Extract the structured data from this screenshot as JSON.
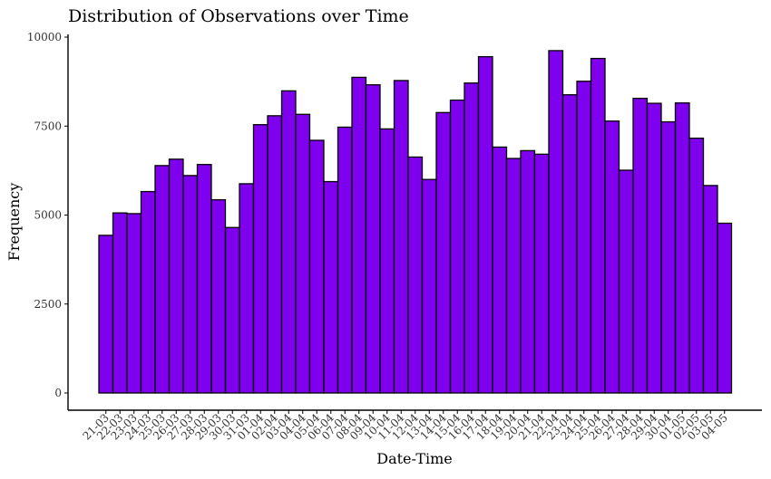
{
  "chart_data": {
    "type": "bar",
    "title": "Distribution of Observations over Time",
    "xlabel": "Date-Time",
    "ylabel": "Frequency",
    "ylim": [
      0,
      10000
    ],
    "yticks": [
      0,
      2500,
      5000,
      7500,
      10000
    ],
    "grid": false,
    "legend": "none",
    "bar_fill": "#7f00ee",
    "bar_stroke": "#000000",
    "categories": [
      "21-03",
      "22-03",
      "23-03",
      "24-03",
      "25-03",
      "26-03",
      "27-03",
      "28-03",
      "29-03",
      "30-03",
      "31-03",
      "01-04",
      "02-04",
      "03-04",
      "04-04",
      "05-04",
      "06-04",
      "07-04",
      "08-04",
      "09-04",
      "10-04",
      "11-04",
      "12-04",
      "13-04",
      "14-04",
      "15-04",
      "16-04",
      "17-04",
      "18-04",
      "19-04",
      "20-04",
      "21-04",
      "22-04",
      "23-04",
      "24-04",
      "25-04",
      "26-04",
      "27-04",
      "28-04",
      "29-04",
      "30-04",
      "01-05",
      "02-05",
      "03-05",
      "04-05"
    ],
    "values": [
      4430,
      5060,
      5040,
      5660,
      6390,
      6570,
      6110,
      6420,
      5430,
      4650,
      5880,
      7540,
      7790,
      8490,
      7830,
      7100,
      5940,
      7470,
      8870,
      8660,
      7420,
      8780,
      6630,
      6000,
      7880,
      8230,
      8710,
      9450,
      6910,
      6590,
      6810,
      6710,
      9620,
      8380,
      8760,
      9400,
      7640,
      6260,
      8280,
      8140,
      7620,
      8150,
      7160,
      5830,
      4770
    ]
  }
}
